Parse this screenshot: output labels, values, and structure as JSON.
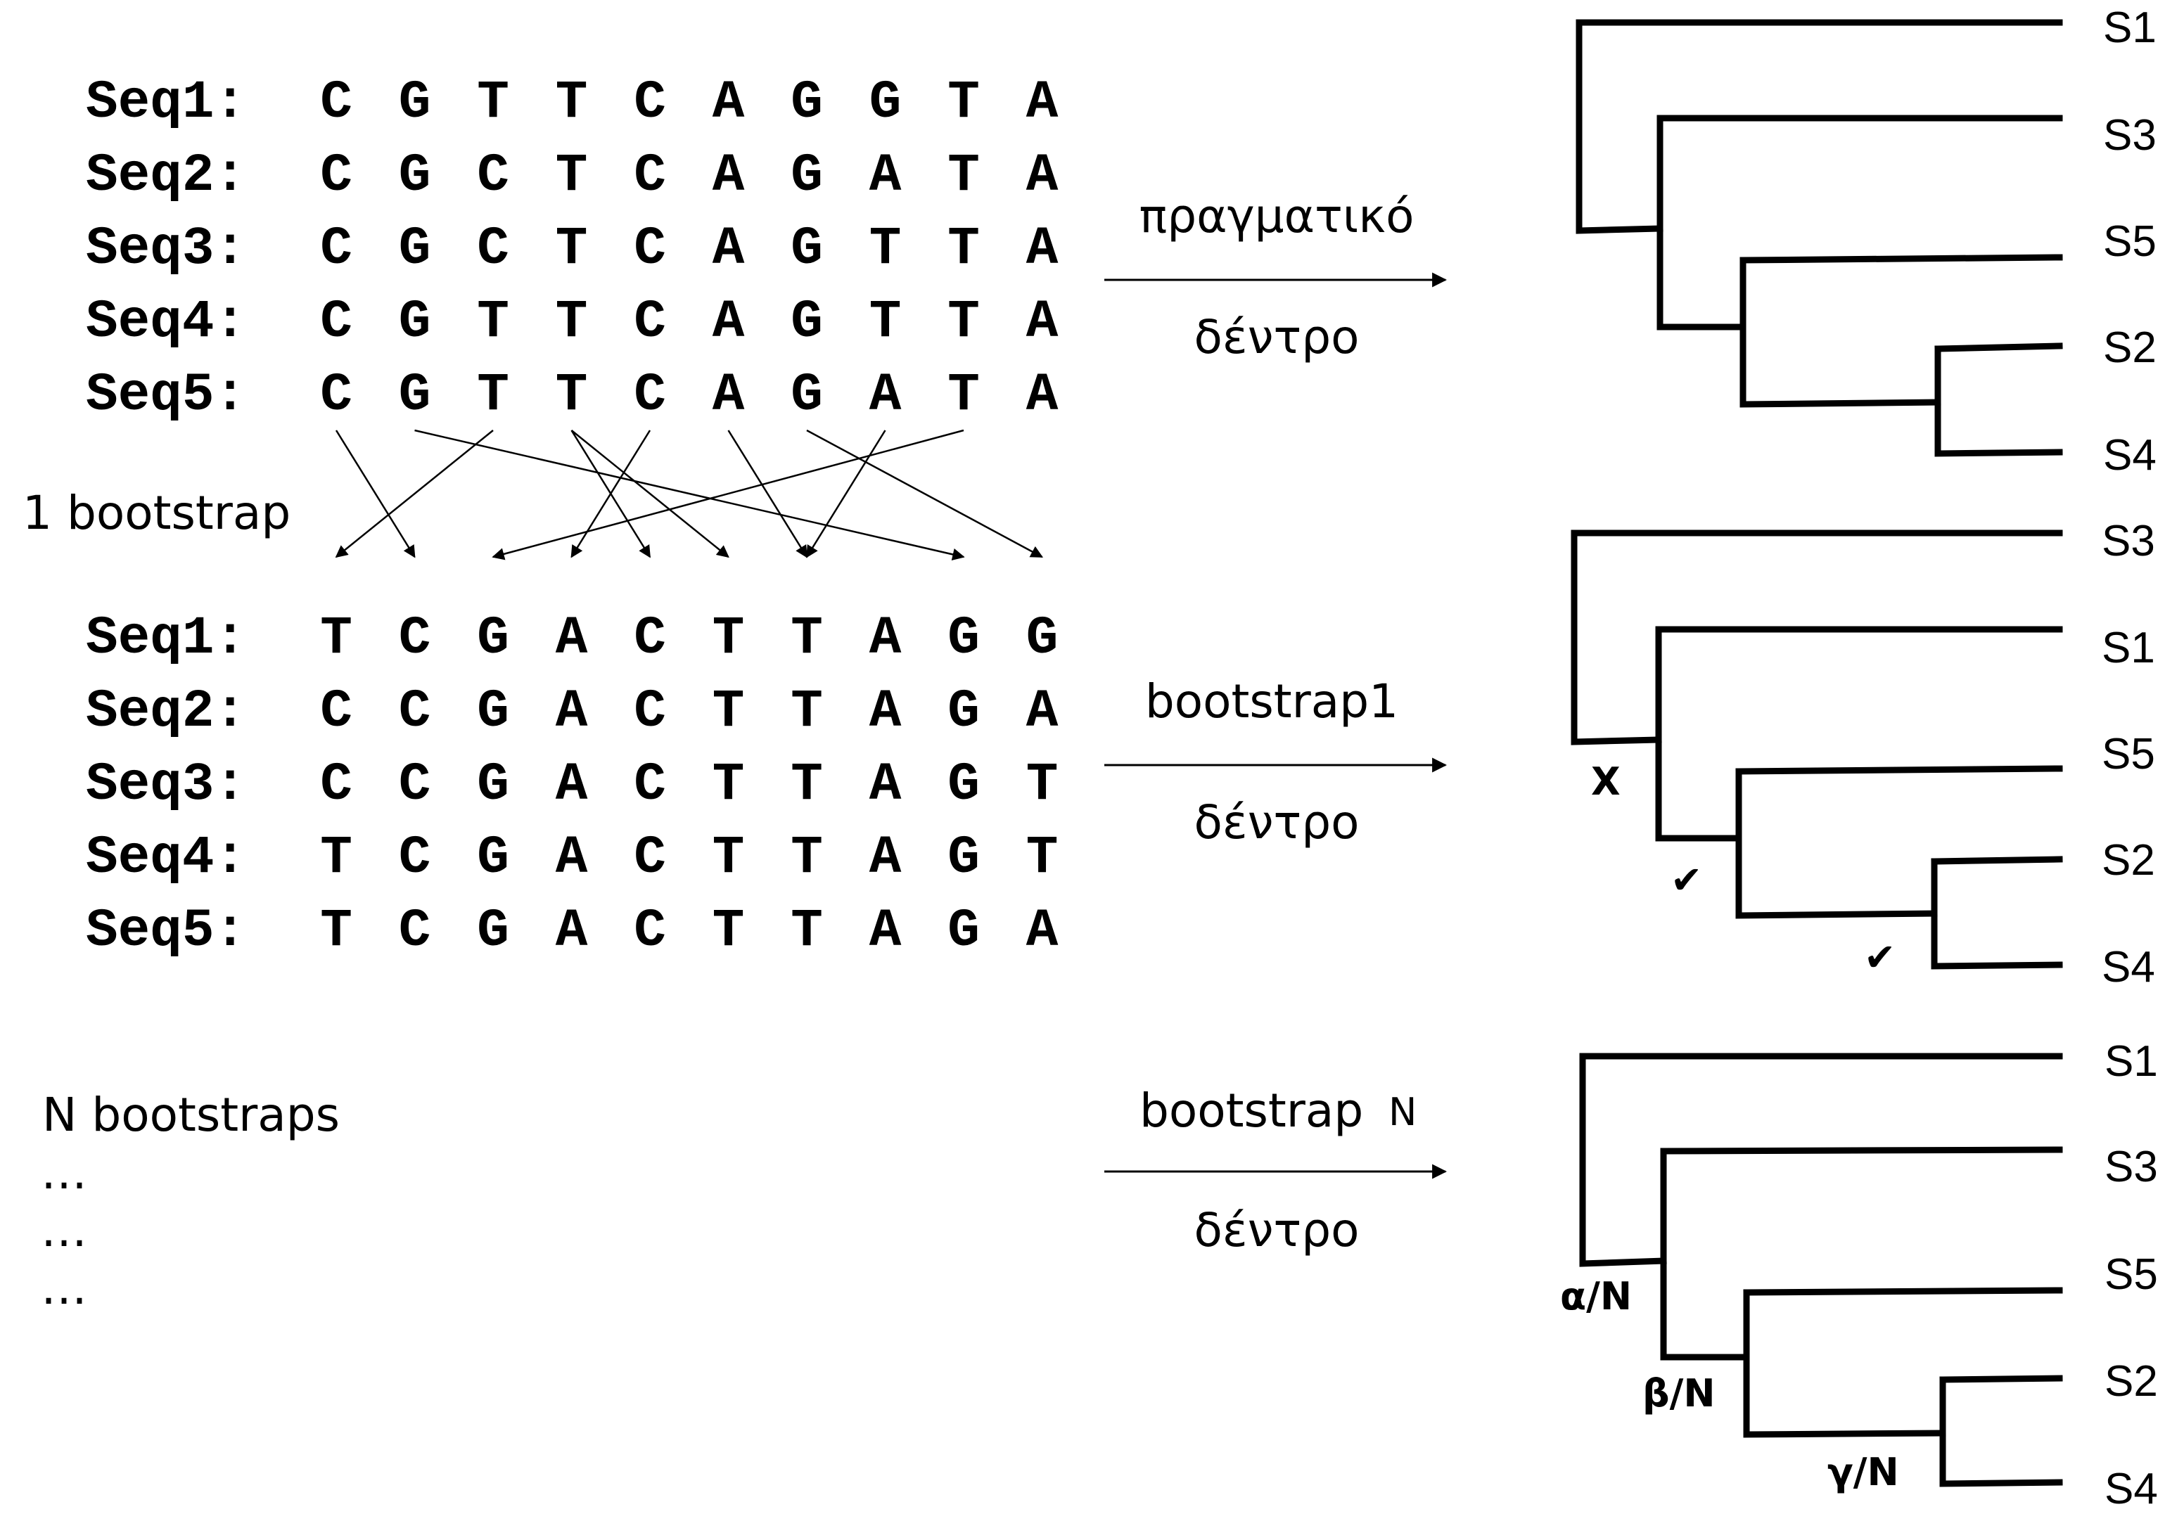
{
  "original_alignment": {
    "rows": [
      {
        "label": "Seq1:",
        "bases": [
          "C",
          "G",
          "T",
          "T",
          "C",
          "A",
          "G",
          "G",
          "T",
          "A"
        ]
      },
      {
        "label": "Seq2:",
        "bases": [
          "C",
          "G",
          "C",
          "T",
          "C",
          "A",
          "G",
          "A",
          "T",
          "A"
        ]
      },
      {
        "label": "Seq3:",
        "bases": [
          "C",
          "G",
          "C",
          "T",
          "C",
          "A",
          "G",
          "T",
          "T",
          "A"
        ]
      },
      {
        "label": "Seq4:",
        "bases": [
          "C",
          "G",
          "T",
          "T",
          "C",
          "A",
          "G",
          "T",
          "T",
          "A"
        ]
      },
      {
        "label": "Seq5:",
        "bases": [
          "C",
          "G",
          "T",
          "T",
          "C",
          "A",
          "G",
          "A",
          "T",
          "A"
        ]
      }
    ]
  },
  "bootstrap_alignment": {
    "rows": [
      {
        "label": "Seq1:",
        "bases": [
          "T",
          "C",
          "G",
          "A",
          "C",
          "T",
          "T",
          "A",
          "G",
          "G"
        ]
      },
      {
        "label": "Seq2:",
        "bases": [
          "C",
          "C",
          "G",
          "A",
          "C",
          "T",
          "T",
          "A",
          "G",
          "A"
        ]
      },
      {
        "label": "Seq3:",
        "bases": [
          "C",
          "C",
          "G",
          "A",
          "C",
          "T",
          "T",
          "A",
          "G",
          "T"
        ]
      },
      {
        "label": "Seq4:",
        "bases": [
          "T",
          "C",
          "G",
          "A",
          "C",
          "T",
          "T",
          "A",
          "G",
          "T"
        ]
      },
      {
        "label": "Seq5:",
        "bases": [
          "T",
          "C",
          "G",
          "A",
          "C",
          "T",
          "T",
          "A",
          "G",
          "A"
        ]
      }
    ]
  },
  "resampling": {
    "label": "1 bootstrap",
    "column_mapping": [
      {
        "from": 1,
        "to": 2
      },
      {
        "from": 2,
        "to": 9
      },
      {
        "from": 3,
        "to": 1
      },
      {
        "from": 4,
        "to": 5
      },
      {
        "from": 4,
        "to": 6
      },
      {
        "from": 5,
        "to": 4
      },
      {
        "from": 6,
        "to": 7
      },
      {
        "from": 7,
        "to": 10
      },
      {
        "from": 8,
        "to": 7
      },
      {
        "from": 9,
        "to": 3
      }
    ]
  },
  "n_bootstraps": {
    "label": "N bootstraps",
    "ellipses": [
      "…",
      "…",
      "…"
    ]
  },
  "arrows": [
    {
      "top_label": "πραγματικό",
      "bottom_label": "δέντρο"
    },
    {
      "top_label": "bootstrap1",
      "bottom_label": "δέντρο"
    },
    {
      "top_label": "bootstrap",
      "top_suffix": "N",
      "bottom_label": "δέντρο"
    }
  ],
  "trees": [
    {
      "leaves": [
        "S1",
        "S3",
        "S5",
        "S2",
        "S4"
      ],
      "node_labels": [
        "",
        "",
        ""
      ]
    },
    {
      "leaves": [
        "S3",
        "S1",
        "S5",
        "S2",
        "S4"
      ],
      "node_labels": [
        "X",
        "✔",
        "✔"
      ]
    },
    {
      "leaves": [
        "S1",
        "S3",
        "S5",
        "S2",
        "S4"
      ],
      "node_labels": [
        "α/N",
        "β/N",
        "γ/N"
      ]
    }
  ]
}
